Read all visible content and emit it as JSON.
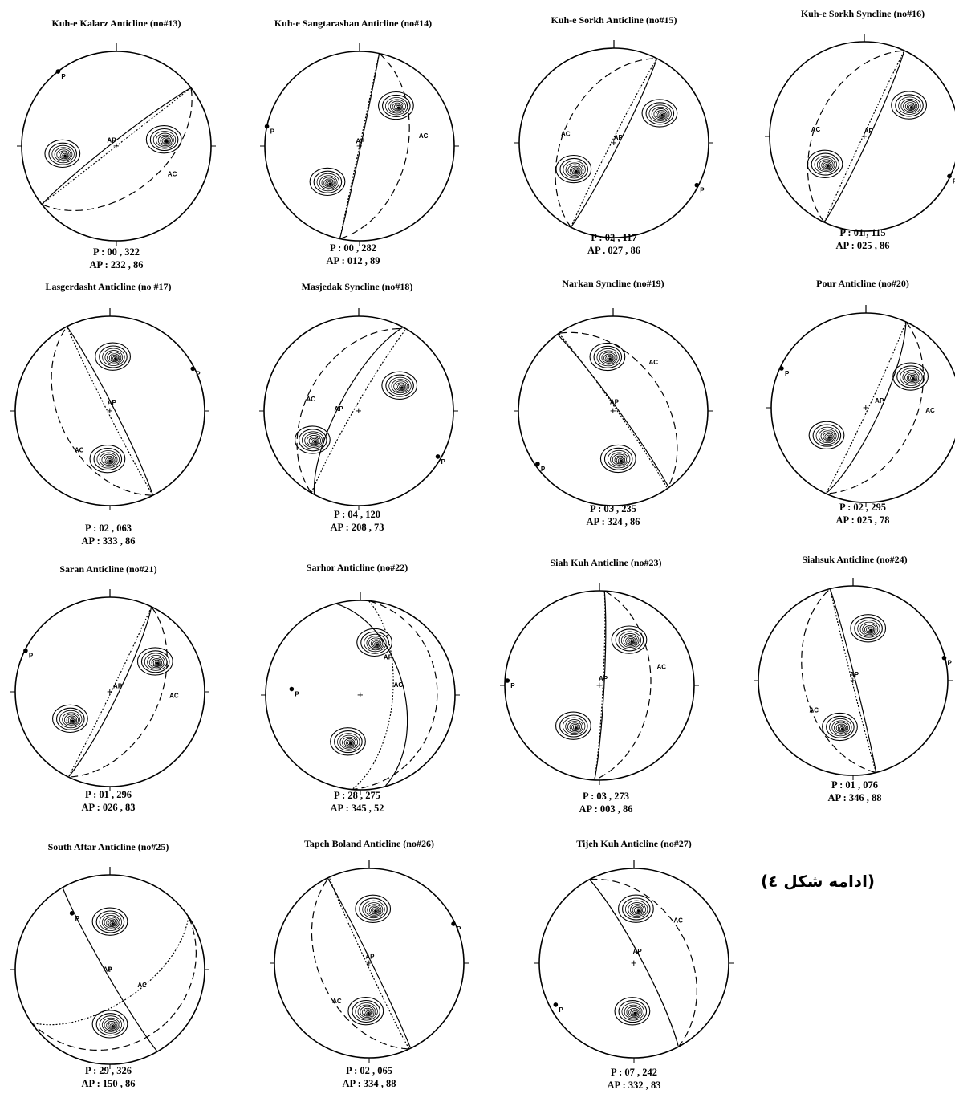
{
  "figure_caption": "(ادامه شکل ٤)",
  "panels": [
    {
      "title": "Kuh-e Kalarz Anticline (no#13)",
      "p": "P : 00 , 322",
      "ap": "AP : 232 , 86"
    },
    {
      "title": "Kuh-e Sangtarashan Anticline (no#14)",
      "p": "P : 00 , 282",
      "ap": "AP : 012 , 89"
    },
    {
      "title": "Kuh-e Sorkh Anticline (no#15)",
      "p": "P : 02 , 117",
      "ap": "AP . 027 , 86"
    },
    {
      "title": "Kuh-e Sorkh Syncline (no#16)",
      "p": "P : 01 , 115",
      "ap": "AP : 025 , 86"
    },
    {
      "title": "Lasgerdasht Anticline (no #17)",
      "p": "P : 02 , 063",
      "ap": "AP : 333 , 86"
    },
    {
      "title": "Masjedak Syncline (no#18)",
      "p": "P : 04 , 120",
      "ap": "AP : 208 , 73"
    },
    {
      "title": "Narkan Syncline (no#19)",
      "p": "P : 03 , 235",
      "ap": "AP : 324 , 86"
    },
    {
      "title": "Pour Anticline (no#20)",
      "p": "P : 02 , 295",
      "ap": "AP : 025 , 78"
    },
    {
      "title": "Saran Anticline (no#21)",
      "p": "P : 01 , 296",
      "ap": "AP : 026 , 83"
    },
    {
      "title": "Sarhor Anticline (no#22)",
      "p": "P : 28 , 275",
      "ap": "AP : 345 , 52"
    },
    {
      "title": "Siah Kuh Anticline (no#23)",
      "p": "P : 03 , 273",
      "ap": "AP : 003 , 86"
    },
    {
      "title": "Siahsuk Anticline (no#24)",
      "p": "P : 01 , 076",
      "ap": "AP : 346 , 88"
    },
    {
      "title": "South Aftar Anticline (no#25)",
      "p": "P : 29 , 326",
      "ap": "AP : 150 , 86"
    },
    {
      "title": "Tapeh Boland Anticline (no#26)",
      "p": "P : 02 , 065",
      "ap": "AP : 334 , 88"
    },
    {
      "title": "Tijeh Kuh Anticline (no#27)",
      "p": "P : 07 , 242",
      "ap": "AP : 332 , 83"
    }
  ],
  "labels": {
    "p": "P",
    "ap": "AP",
    "ac": "AC",
    "center": "+"
  }
}
